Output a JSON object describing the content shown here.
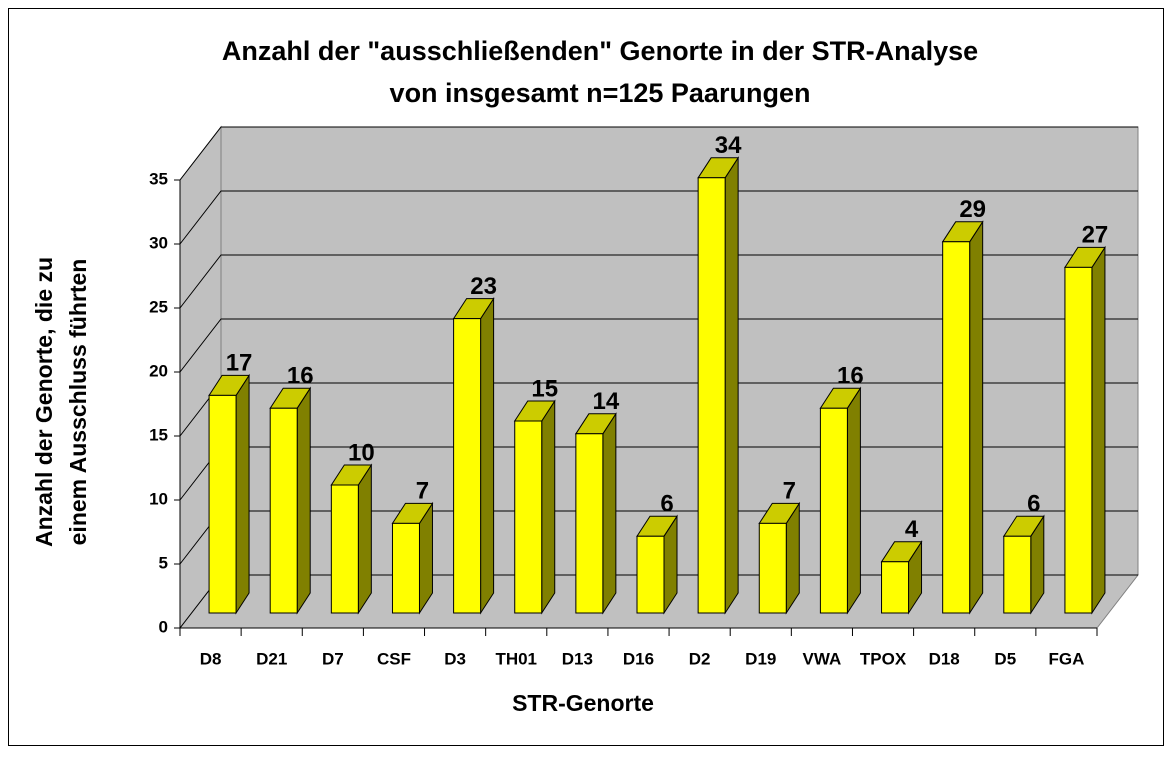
{
  "chart_data": {
    "type": "bar3d",
    "title": [
      "Anzahl der \"ausschließenden\" Genorte in der STR-Analyse",
      "von insgesamt n=125 Paarungen"
    ],
    "xlabel": "STR-Genorte",
    "ylabel": [
      "Anzahl der Genorte, die zu",
      "einem Ausschluss führten"
    ],
    "categories": [
      "D8",
      "D21",
      "D7",
      "CSF",
      "D3",
      "TH01",
      "D13",
      "D16",
      "D2",
      "D19",
      "VWA",
      "TPOX",
      "D18",
      "D5",
      "FGA"
    ],
    "values": [
      17,
      16,
      10,
      7,
      23,
      15,
      14,
      6,
      34,
      7,
      16,
      4,
      29,
      6,
      27
    ],
    "color": "#ffff00",
    "ylim": [
      0,
      35
    ],
    "yticks": [
      0,
      5,
      10,
      15,
      20,
      25,
      30,
      35
    ],
    "grid": true
  }
}
